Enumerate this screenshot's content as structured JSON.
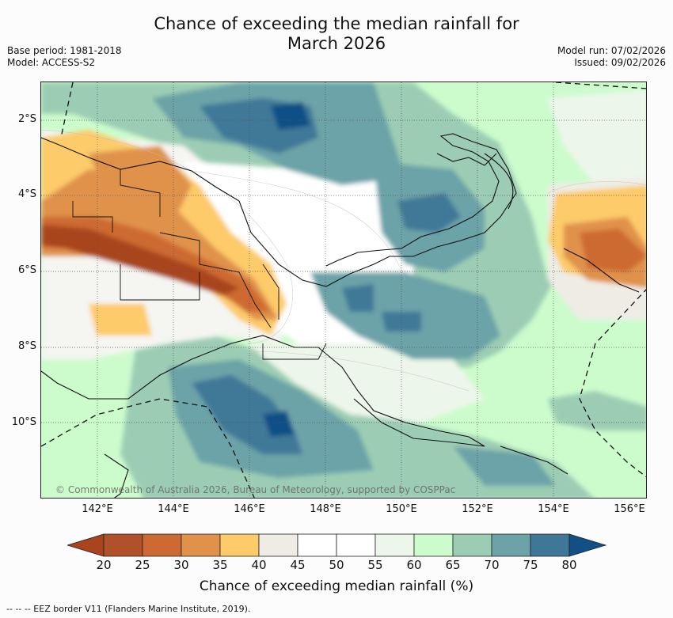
{
  "title": "Chance of exceeding the median rainfall for March 2026",
  "title_lines": [
    "Chance of exceeding the median rainfall for",
    "March 2026"
  ],
  "base_period": "Base period: 1981-2018",
  "model": "Model: ACCESS-S2",
  "model_run": "Model run: 07/02/2026",
  "issued": "Issued: 09/02/2026",
  "map": {
    "lat_ticks": [
      "2°S",
      "4°S",
      "6°S",
      "8°S",
      "10°S"
    ],
    "lon_ticks": [
      "142°E",
      "144°E",
      "146°E",
      "148°E",
      "150°E",
      "152°E",
      "154°E",
      "156°E"
    ],
    "copyright": "© Commonwealth of Australia 2026, Bureau of Meteorology, supported by COSPPac",
    "region": "Papua New Guinea",
    "lat_range": [
      -12,
      -1
    ],
    "lon_range": [
      140.7,
      156.7
    ]
  },
  "colorbar": {
    "labels": [
      "20",
      "25",
      "30",
      "35",
      "40",
      "45",
      "50",
      "55",
      "60",
      "65",
      "70",
      "75",
      "80"
    ],
    "colors": [
      "#a9441e",
      "#b0512a",
      "#cd6a33",
      "#e0924b",
      "#fdcb6a",
      "#efece6",
      "#ffffff",
      "#ffffff",
      "#edf6ea",
      "#ccfccc",
      "#9ccdb4",
      "#6ca3a8",
      "#3f7897",
      "#114f86"
    ],
    "title": "Chance of exceeding median rainfall (%)"
  },
  "footer": "-- -- -- EEZ border V11 (Flanders Marine Institute, 2019)."
}
